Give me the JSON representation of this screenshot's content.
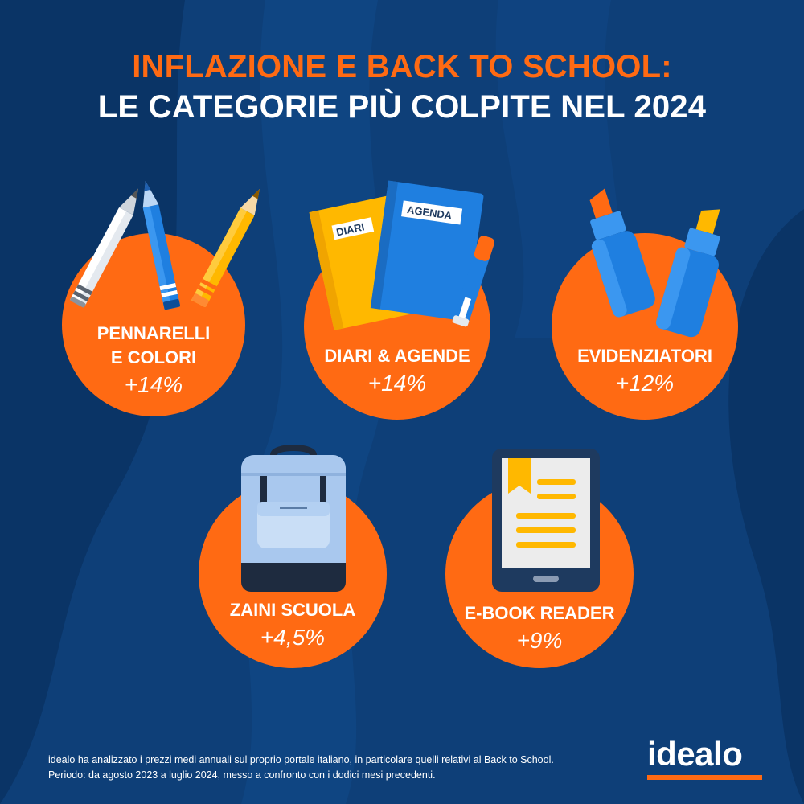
{
  "header": {
    "title_line1": "INFLAZIONE E BACK TO SCHOOL:",
    "title_line2": "LE CATEGORIE PIÙ COLPITE NEL 2024"
  },
  "categories": [
    {
      "name_line1": "PENNARELLI",
      "name_line2": "E COLORI",
      "change": "+14%",
      "icon": "pencils-icon"
    },
    {
      "name_line1": "DIARI & AGENDE",
      "name_line2": "",
      "change": "+14%",
      "icon": "notebooks-icon",
      "label_diari": "DIARI",
      "label_agenda": "AGENDA"
    },
    {
      "name_line1": "EVIDENZIATORI",
      "name_line2": "",
      "change": "+12%",
      "icon": "highlighters-icon"
    },
    {
      "name_line1": "ZAINI SCUOLA",
      "name_line2": "",
      "change": "+4,5%",
      "icon": "backpack-icon"
    },
    {
      "name_line1": "E-BOOK READER",
      "name_line2": "",
      "change": "+9%",
      "icon": "ebook-reader-icon"
    }
  ],
  "footnote": {
    "line1": "idealo ha analizzato i prezzi medi annuali sul proprio portale italiano, in particolare quelli relativi al Back to School.",
    "line2": "Periodo: da agosto 2023 a luglio 2024, messo a confronto con i dodici mesi precedenti."
  },
  "brand": {
    "name": "idealo"
  },
  "colors": {
    "background": "#0e3f78",
    "accent": "#ff6a13",
    "icon_blue": "#1f7fe0",
    "text": "#ffffff"
  }
}
